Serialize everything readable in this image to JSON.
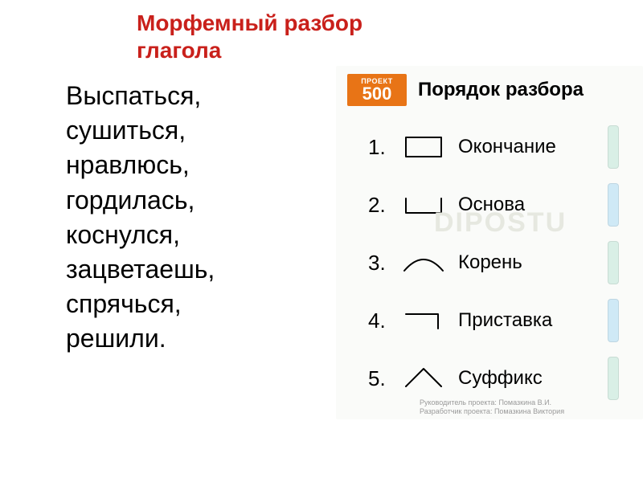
{
  "title_color": "#c9201b",
  "title": "Морфемный разбор глагола",
  "words": [
    "Выспаться,",
    "сушиться,",
    "нравлюсь,",
    "гордилась,",
    "коснулся,",
    "зацветаешь,",
    "спрячься,",
    "решили."
  ],
  "panel": {
    "logo_small": "ПРОЕКТ",
    "logo_big": "500",
    "logo_bg": "#e87416",
    "title": "Порядок разбора",
    "watermark": "DIPOSTU",
    "items": [
      {
        "num": "1.",
        "label": "Окончание",
        "symbol": "ending",
        "tab_color": "#d9efe6"
      },
      {
        "num": "2.",
        "label": "Основа",
        "symbol": "stem",
        "tab_color": "#cfe9f6"
      },
      {
        "num": "3.",
        "label": "Корень",
        "symbol": "root",
        "tab_color": "#d9efe6"
      },
      {
        "num": "4.",
        "label": "Приставка",
        "symbol": "prefix",
        "tab_color": "#cfe9f6"
      },
      {
        "num": "5.",
        "label": "Суффикс",
        "symbol": "suffix",
        "tab_color": "#d9efe6"
      }
    ],
    "credits": [
      "Руководитель проекта: Помазкина В.И.",
      "Разработчик проекта: Помазкина Виктория"
    ],
    "stroke_color": "#000000",
    "stroke_width": 2
  }
}
